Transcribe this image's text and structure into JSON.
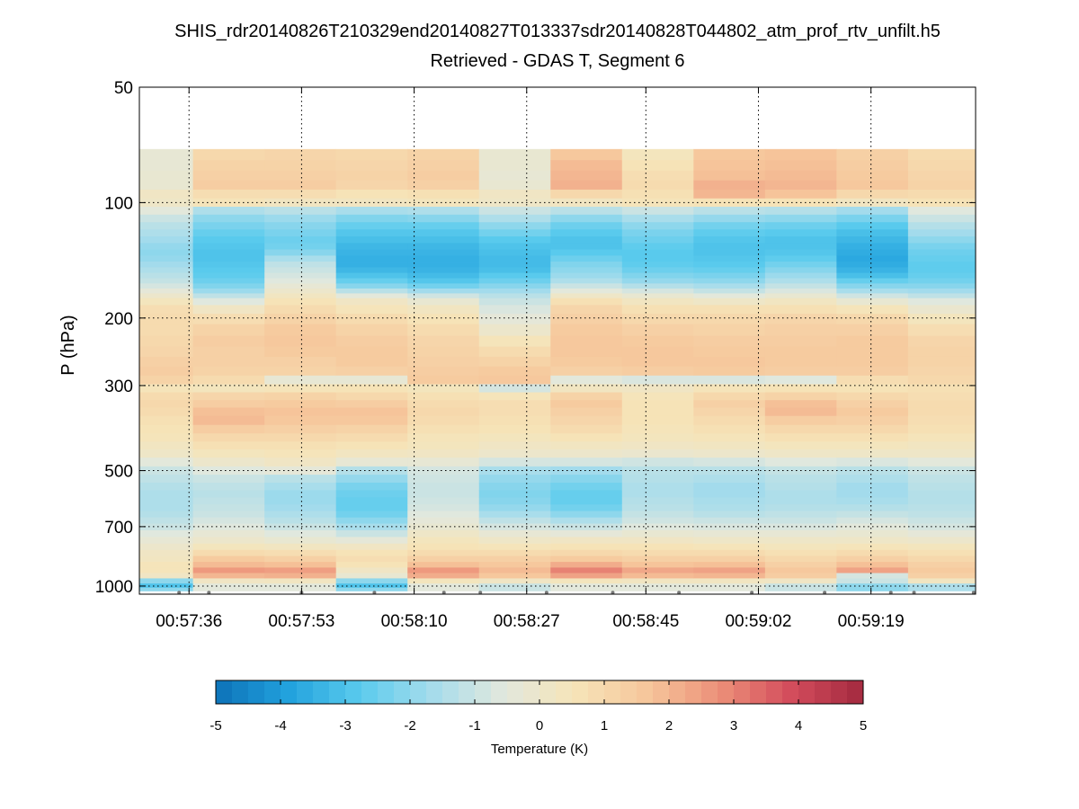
{
  "chart_data": {
    "type": "heatmap",
    "title": "SHIS_rdr20140826T210329end20140827T013337sdr20140828T044802_atm_prof_rtv_unfilt.h5",
    "subtitle": "Retrieved - GDAS T, Segment 6",
    "xlabel": "",
    "ylabel": "P (hPa)",
    "yscale": "log",
    "ylim": [
      50,
      1050
    ],
    "y_ticks": [
      50,
      100,
      200,
      300,
      500,
      700,
      1000
    ],
    "y_tick_labels": [
      "50",
      "100",
      "200",
      "300",
      "500",
      "700",
      "1000"
    ],
    "x_tick_labels": [
      "00:57:36",
      "00:57:53",
      "00:58:10",
      "00:58:27",
      "00:58:45",
      "00:59:02",
      "00:59:19"
    ],
    "x_tick_seconds": [
      3456,
      3473,
      3490,
      3507,
      3525,
      3542,
      3559
    ],
    "x_range_seconds": [
      3448.5,
      3574.8
    ],
    "column_times_seconds": [
      3451.2,
      3462.0,
      3472.8,
      3483.6,
      3494.4,
      3505.2,
      3516.0,
      3526.8,
      3537.6,
      3548.4,
      3559.2,
      3570.0
    ],
    "p_levels_hPa": [
      75,
      80,
      85,
      90,
      95,
      100,
      105,
      110,
      115,
      120,
      125,
      130,
      135,
      140,
      145,
      150,
      155,
      160,
      165,
      170,
      175,
      180,
      190,
      200,
      215,
      230,
      245,
      260,
      275,
      290,
      305,
      320,
      335,
      350,
      370,
      390,
      410,
      430,
      450,
      475,
      500,
      525,
      550,
      575,
      600,
      625,
      650,
      675,
      700,
      730,
      760,
      790,
      820,
      850,
      880,
      910,
      940,
      970,
      1000,
      1020
    ],
    "colormap": [
      "#0d72b8",
      "#21a1dd",
      "#5acbed",
      "#a5dcec",
      "#e2e8dd",
      "#f6e4b8",
      "#f6c69b",
      "#ec9079",
      "#d34c5c",
      "#a3293f"
    ],
    "colorbar": {
      "label": "Temperature (K)",
      "range": [
        -5,
        5
      ],
      "ticks": [
        -5,
        -4,
        -3,
        -2,
        -1,
        0,
        1,
        2,
        3,
        4,
        5
      ],
      "tick_labels": [
        "-5",
        "-4",
        "-3",
        "-2",
        "-1",
        "0",
        "1",
        "2",
        "3",
        "4",
        "5"
      ]
    },
    "profiles_K": [
      [
        -0.3,
        -0.3,
        -0.2,
        -0.2,
        0.2,
        0.1,
        -0.5,
        -1.0,
        -1.3,
        -1.5,
        -1.7,
        -1.9,
        -2.0,
        -1.9,
        -1.7,
        -1.5,
        -1.3,
        -1.1,
        -0.8,
        -0.4,
        0.0,
        0.4,
        0.8,
        0.9,
        0.9,
        1.0,
        1.1,
        1.3,
        1.4,
        1.2,
        0.5,
        0.9,
        1.0,
        0.9,
        0.7,
        0.6,
        0.5,
        0.3,
        0.1,
        -0.5,
        -1.0,
        -1.2,
        -1.4,
        -1.5,
        -1.5,
        -1.5,
        -1.4,
        -1.2,
        -1.0,
        -0.6,
        -0.3,
        0.0,
        0.2,
        0.3,
        0.5,
        0.5,
        0.2,
        -2.0,
        -3.0,
        -2.0
      ],
      [
        1.0,
        1.2,
        1.3,
        1.4,
        0.8,
        0.5,
        -1.5,
        -2.0,
        -2.3,
        -2.6,
        -2.8,
        -2.9,
        -3.0,
        -3.0,
        -2.9,
        -2.8,
        -2.7,
        -2.5,
        -2.2,
        -1.8,
        -1.2,
        -0.6,
        0.2,
        0.8,
        1.2,
        1.4,
        1.3,
        1.3,
        1.2,
        0.9,
        0.4,
        1.1,
        1.4,
        1.8,
        1.9,
        1.4,
        1.0,
        0.7,
        0.4,
        0.0,
        -0.6,
        -1.0,
        -1.2,
        -1.3,
        -1.2,
        -1.1,
        -1.0,
        -0.8,
        -0.6,
        -0.3,
        0.0,
        0.4,
        0.9,
        1.5,
        1.9,
        2.6,
        2.0,
        0.2,
        -0.5,
        -0.5
      ],
      [
        1.1,
        1.2,
        1.3,
        1.4,
        0.8,
        0.3,
        -1.3,
        -1.8,
        -2.1,
        -2.3,
        -2.5,
        -2.4,
        -2.1,
        -1.6,
        -1.2,
        -1.0,
        -0.8,
        -0.6,
        -0.3,
        0.0,
        0.3,
        0.6,
        0.9,
        1.2,
        1.5,
        1.6,
        1.5,
        1.3,
        1.2,
        -0.3,
        0.5,
        1.2,
        1.5,
        1.7,
        1.6,
        1.3,
        1.0,
        0.7,
        0.5,
        0.2,
        -0.4,
        -1.3,
        -1.6,
        -1.8,
        -1.8,
        -1.7,
        -1.5,
        -1.3,
        -1.0,
        -0.6,
        -0.2,
        0.3,
        0.8,
        1.3,
        1.8,
        2.5,
        2.1,
        0.3,
        -0.5,
        -0.5
      ],
      [
        1.0,
        1.1,
        1.2,
        1.1,
        0.6,
        0.3,
        -1.6,
        -2.2,
        -2.6,
        -2.9,
        -3.1,
        -3.3,
        -3.4,
        -3.5,
        -3.5,
        -3.3,
        -3.0,
        -2.6,
        -2.1,
        -1.3,
        -0.5,
        0.2,
        0.5,
        0.9,
        1.2,
        1.4,
        1.5,
        1.5,
        1.3,
        -0.3,
        0.6,
        1.0,
        1.4,
        1.7,
        1.6,
        1.2,
        0.9,
        0.6,
        0.3,
        -0.3,
        -1.4,
        -1.9,
        -2.3,
        -2.5,
        -2.6,
        -2.6,
        -2.4,
        -2.0,
        -1.6,
        -1.0,
        -0.4,
        0.2,
        0.6,
        0.8,
        0.6,
        0.2,
        -0.2,
        -2.0,
        -3.0,
        -2.0
      ],
      [
        1.2,
        1.3,
        1.4,
        1.3,
        0.7,
        0.4,
        -1.5,
        -2.1,
        -2.6,
        -2.9,
        -3.1,
        -3.3,
        -3.4,
        -3.5,
        -3.5,
        -3.4,
        -3.2,
        -2.9,
        -2.4,
        -1.7,
        -0.9,
        -0.2,
        0.3,
        0.6,
        0.9,
        1.1,
        1.2,
        1.3,
        1.4,
        1.5,
        0.4,
        0.7,
        0.9,
        1.0,
        0.9,
        0.7,
        0.5,
        0.4,
        0.2,
        -0.3,
        -0.8,
        -0.9,
        -1.0,
        -1.0,
        -0.9,
        -0.8,
        -0.6,
        -0.4,
        -0.2,
        0.1,
        0.4,
        0.6,
        0.9,
        1.3,
        1.8,
        2.6,
        2.2,
        0.4,
        -0.5,
        -0.5
      ],
      [
        -0.2,
        -0.2,
        -0.3,
        -0.2,
        0.2,
        0.1,
        -1.0,
        -1.5,
        -2.0,
        -2.4,
        -2.8,
        -3.0,
        -3.1,
        -3.2,
        -3.2,
        -3.1,
        -2.8,
        -2.5,
        -2.1,
        -1.7,
        -1.3,
        -1.0,
        -0.7,
        -0.4,
        0.0,
        0.5,
        0.9,
        1.2,
        1.5,
        1.6,
        -0.8,
        0.5,
        0.8,
        0.8,
        0.7,
        0.6,
        0.4,
        0.2,
        0.0,
        -0.8,
        -1.6,
        -1.9,
        -2.1,
        -2.2,
        -2.1,
        -1.9,
        -1.6,
        -1.2,
        -0.8,
        -0.3,
        0.1,
        0.5,
        0.9,
        1.3,
        1.6,
        1.9,
        1.6,
        0.2,
        -1.0,
        -1.0
      ],
      [
        1.6,
        1.9,
        2.0,
        2.1,
        1.0,
        0.3,
        -1.3,
        -2.0,
        -2.5,
        -2.8,
        -3.0,
        -3.0,
        -2.8,
        -2.5,
        -2.2,
        -2.0,
        -1.8,
        -1.5,
        -1.0,
        -0.5,
        0.1,
        0.7,
        1.1,
        1.3,
        1.5,
        1.6,
        1.6,
        1.5,
        1.3,
        -0.5,
        0.3,
        1.2,
        1.5,
        1.3,
        1.1,
        0.9,
        0.6,
        0.3,
        0.0,
        -0.8,
        -1.7,
        -2.1,
        -2.4,
        -2.6,
        -2.6,
        -2.4,
        -2.0,
        -1.5,
        -1.0,
        -0.4,
        0.2,
        0.6,
        1.0,
        1.5,
        2.2,
        3.0,
        2.4,
        0.4,
        -0.5,
        -0.5
      ],
      [
        0.4,
        0.6,
        0.8,
        0.9,
        0.7,
        0.5,
        -1.0,
        -1.6,
        -2.0,
        -2.3,
        -2.5,
        -2.7,
        -2.8,
        -2.8,
        -2.7,
        -2.5,
        -2.2,
        -1.9,
        -1.4,
        -0.8,
        -0.2,
        0.3,
        0.7,
        1.0,
        1.3,
        1.5,
        1.6,
        1.6,
        1.4,
        -0.7,
        0.2,
        0.5,
        0.6,
        0.6,
        0.6,
        0.5,
        0.4,
        0.2,
        -0.1,
        -0.9,
        -1.3,
        -1.4,
        -1.5,
        -1.5,
        -1.4,
        -1.3,
        -1.1,
        -0.9,
        -0.6,
        -0.2,
        0.2,
        0.6,
        0.9,
        1.3,
        1.7,
        2.3,
        1.9,
        0.3,
        -0.5,
        -0.5
      ],
      [
        1.6,
        1.7,
        1.8,
        2.1,
        2.0,
        0.6,
        -1.3,
        -1.9,
        -2.4,
        -2.7,
        -2.9,
        -3.0,
        -3.0,
        -2.9,
        -2.8,
        -2.6,
        -2.3,
        -2.0,
        -1.6,
        -1.1,
        -0.5,
        0.1,
        0.7,
        1.0,
        1.2,
        1.4,
        1.5,
        1.6,
        1.5,
        -0.7,
        0.5,
        1.0,
        1.3,
        1.1,
        0.9,
        0.7,
        0.5,
        0.3,
        0.0,
        -0.8,
        -1.3,
        -1.5,
        -1.7,
        -1.7,
        -1.6,
        -1.5,
        -1.3,
        -1.0,
        -0.7,
        -0.3,
        0.1,
        0.5,
        0.9,
        1.3,
        1.8,
        2.4,
        2.0,
        0.3,
        -0.5,
        -0.5
      ],
      [
        1.7,
        1.8,
        1.9,
        2.0,
        1.7,
        0.6,
        -1.4,
        -2.0,
        -2.5,
        -2.8,
        -3.0,
        -3.0,
        -2.9,
        -2.7,
        -2.4,
        -2.1,
        -1.8,
        -1.5,
        -1.1,
        -0.7,
        -0.2,
        0.3,
        0.7,
        1.1,
        1.3,
        1.4,
        1.5,
        1.5,
        1.4,
        -0.6,
        0.6,
        1.2,
        1.8,
        1.9,
        1.4,
        1.0,
        0.7,
        0.4,
        0.1,
        -0.6,
        -1.1,
        -1.3,
        -1.4,
        -1.5,
        -1.5,
        -1.4,
        -1.2,
        -1.0,
        -0.7,
        -0.3,
        0.1,
        0.4,
        0.7,
        1.0,
        1.3,
        1.6,
        1.4,
        0.2,
        -1.0,
        -1.0
      ],
      [
        1.3,
        1.4,
        1.5,
        1.6,
        1.0,
        0.3,
        -1.7,
        -2.3,
        -2.8,
        -3.1,
        -3.3,
        -3.5,
        -3.6,
        -3.7,
        -3.6,
        -3.4,
        -3.1,
        -2.6,
        -2.1,
        -1.6,
        -0.9,
        -0.2,
        0.5,
        1.0,
        1.3,
        1.5,
        1.5,
        1.5,
        1.4,
        0.8,
        0.6,
        1.0,
        1.3,
        1.5,
        1.3,
        1.0,
        0.7,
        0.4,
        0.1,
        -0.7,
        -1.3,
        -1.5,
        -1.7,
        -1.7,
        -1.6,
        -1.4,
        -1.1,
        -0.8,
        -0.5,
        -0.2,
        0.1,
        0.5,
        0.9,
        1.3,
        1.8,
        2.4,
        -0.8,
        -1.0,
        -2.0,
        -2.0
      ],
      [
        0.9,
        1.0,
        1.1,
        1.2,
        0.9,
        0.6,
        -0.6,
        -1.0,
        -1.4,
        -1.7,
        -2.0,
        -2.3,
        -2.5,
        -2.6,
        -2.7,
        -2.7,
        -2.6,
        -2.4,
        -2.1,
        -1.7,
        -1.2,
        -0.6,
        -0.1,
        0.4,
        0.8,
        1.1,
        1.2,
        1.2,
        1.1,
        1.0,
        0.7,
        0.8,
        0.9,
        0.9,
        0.8,
        0.7,
        0.5,
        0.3,
        0.1,
        -0.5,
        -1.0,
        -1.2,
        -1.3,
        -1.4,
        -1.4,
        -1.3,
        -1.2,
        -1.0,
        -0.8,
        -0.4,
        0.0,
        0.4,
        0.7,
        1.0,
        1.3,
        1.5,
        1.3,
        0.3,
        -1.5,
        -1.5
      ]
    ],
    "surface_marker_seconds": [
      3454.5,
      3459.0,
      3473.0,
      3484.0,
      3494.5,
      3500.0,
      3510.0,
      3520.0,
      3530.0,
      3541.0,
      3552.0,
      3562.0,
      3565.5,
      3574.5
    ]
  }
}
